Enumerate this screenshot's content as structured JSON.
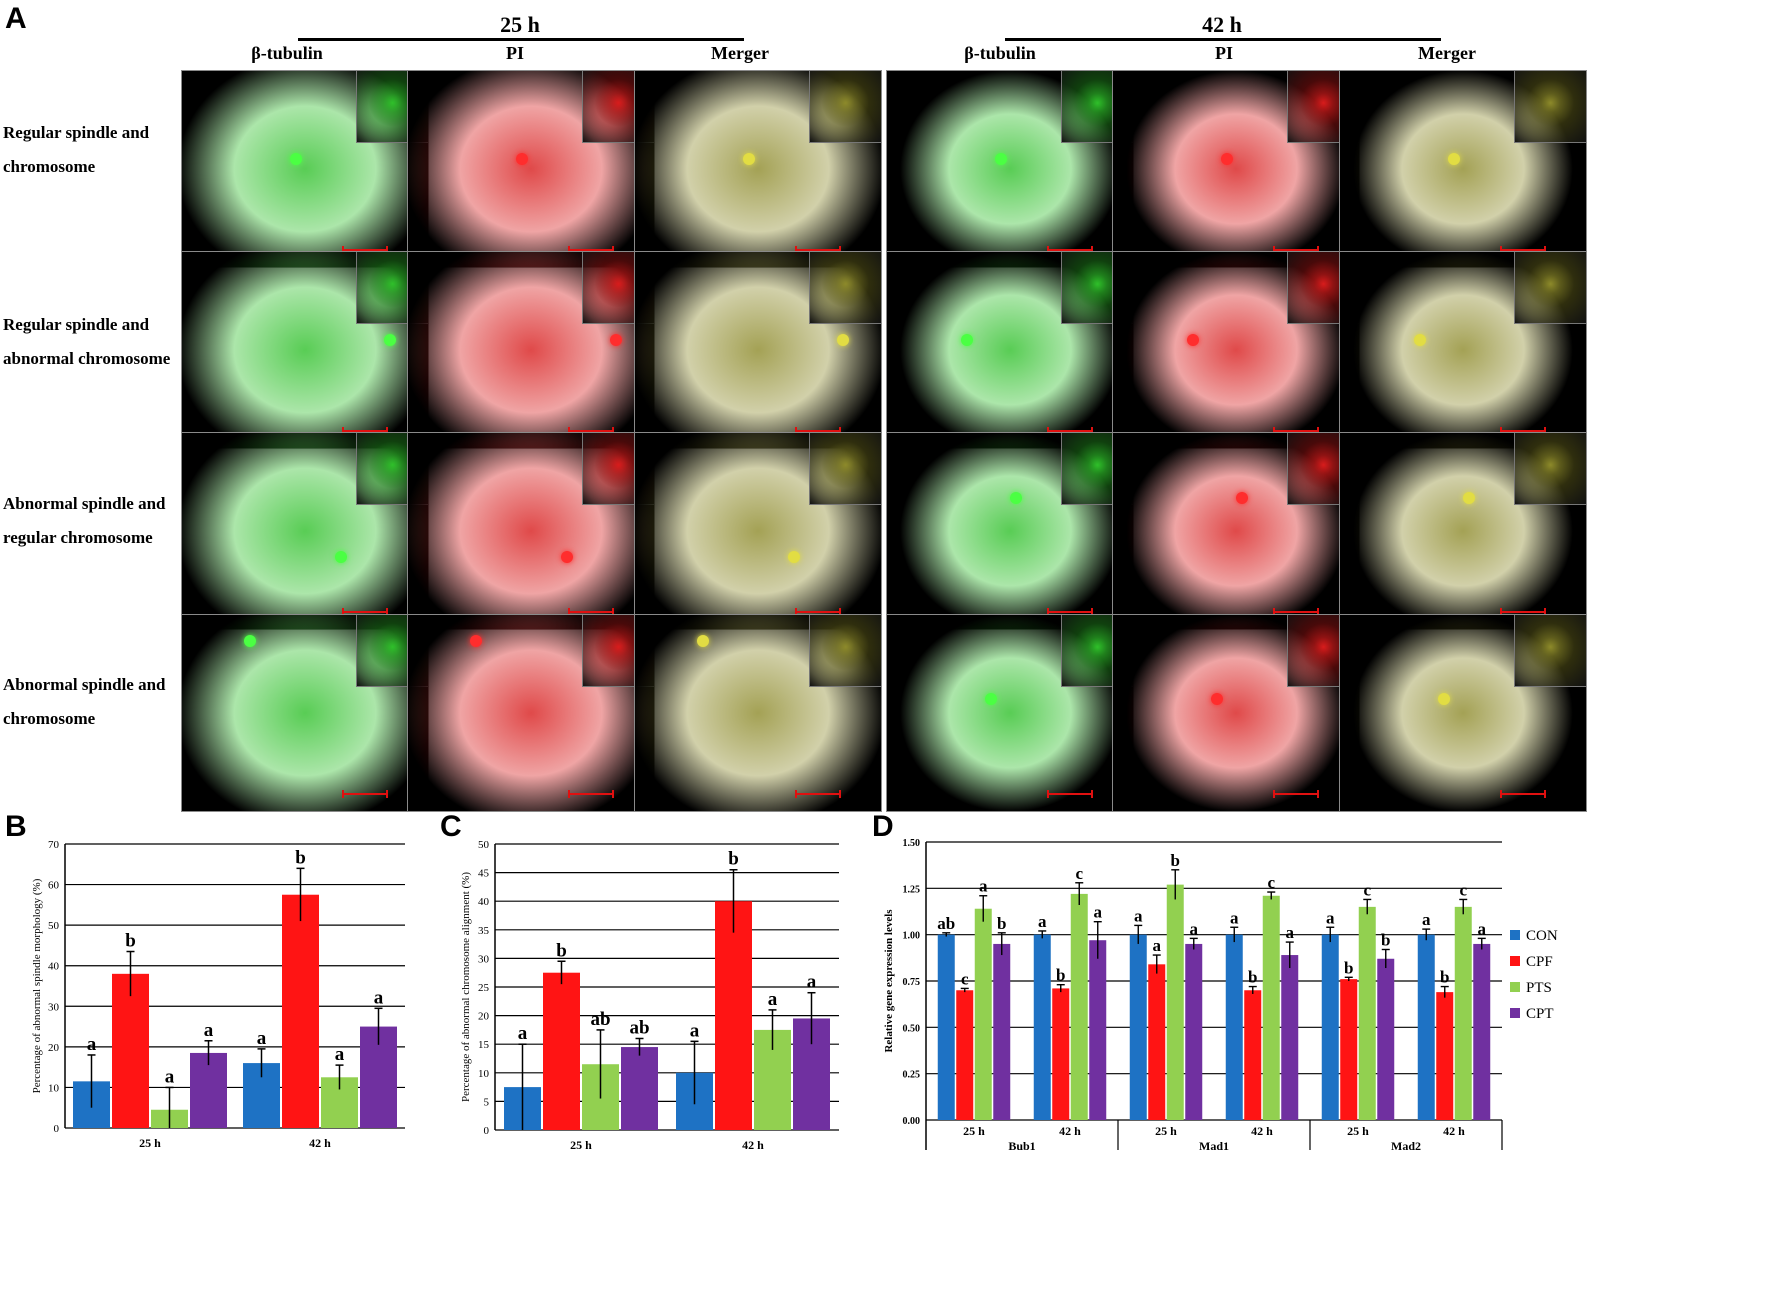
{
  "figure": {
    "panel_labels": {
      "a": "A",
      "b": "B",
      "c": "C",
      "d": "D"
    },
    "panel_a": {
      "time_groups": [
        "25 h",
        "42 h"
      ],
      "columns": [
        "β-tubulin",
        "PI",
        "Merger"
      ],
      "rows": [
        {
          "line1": "Regular spindle and",
          "line2": "chromosome"
        },
        {
          "line1": "Regular spindle and",
          "line2": "abnormal chromosome"
        },
        {
          "line1": "Abnormal spindle and",
          "line2": "regular chromosome"
        },
        {
          "line1": "Abnormal spindle and",
          "line2": "chromosome"
        }
      ],
      "channel_colors": {
        "tubulin": "#2fc02a",
        "pi": "#d81c1c",
        "merger": "#8d8a2a"
      }
    }
  },
  "chart_data": [
    {
      "panel": "B",
      "type": "bar",
      "ylabel": "Percentage of abnormal spindle morphology (%)",
      "ylim": [
        0,
        70
      ],
      "yticks": [
        0,
        10,
        20,
        30,
        40,
        50,
        60,
        70
      ],
      "grid": true,
      "categories": [
        "25 h",
        "42 h"
      ],
      "series": [
        {
          "color": "#1e72c4",
          "values": [
            11.5,
            16
          ],
          "errors": [
            6.5,
            3.5
          ],
          "letters": [
            "a",
            "a"
          ]
        },
        {
          "color": "#ff1414",
          "values": [
            38,
            57.5
          ],
          "errors": [
            5.5,
            6.5
          ],
          "letters": [
            "b",
            "b"
          ]
        },
        {
          "color": "#92d050",
          "values": [
            4.5,
            12.5
          ],
          "errors": [
            5.5,
            3
          ],
          "letters": [
            "a",
            "a"
          ]
        },
        {
          "color": "#7030a0",
          "values": [
            18.5,
            25
          ],
          "errors": [
            3,
            4.5
          ],
          "letters": [
            "a",
            "a"
          ]
        }
      ]
    },
    {
      "panel": "C",
      "type": "bar",
      "ylabel": "Percentage of abnormal chromosome alignment (%)",
      "ylim": [
        0,
        50
      ],
      "yticks": [
        0,
        5,
        10,
        15,
        20,
        25,
        30,
        35,
        40,
        45,
        50
      ],
      "grid": true,
      "categories": [
        "25 h",
        "42 h"
      ],
      "series": [
        {
          "color": "#1e72c4",
          "values": [
            7.5,
            10
          ],
          "errors": [
            7.5,
            5.5
          ],
          "letters": [
            "a",
            "a"
          ]
        },
        {
          "color": "#ff1414",
          "values": [
            27.5,
            40
          ],
          "errors": [
            2,
            5.5
          ],
          "letters": [
            "b",
            "b"
          ]
        },
        {
          "color": "#92d050",
          "values": [
            11.5,
            17.5
          ],
          "errors": [
            6,
            3.5
          ],
          "letters": [
            "ab",
            "a"
          ]
        },
        {
          "color": "#7030a0",
          "values": [
            14.5,
            19.5
          ],
          "errors": [
            1.5,
            4.5
          ],
          "letters": [
            "ab",
            "a"
          ]
        }
      ]
    },
    {
      "panel": "D",
      "type": "bar",
      "ylabel": "Relative gene expression levels",
      "ylim": [
        0,
        1.5
      ],
      "yticks": [
        "0.00",
        "0.25",
        "0.50",
        "0.75",
        "1.00",
        "1.25",
        "1.50"
      ],
      "grid": true,
      "legend_position": "right",
      "genes": [
        "Bub1",
        "Mad1",
        "Mad2"
      ],
      "categories": [
        "25 h",
        "42 h",
        "25 h",
        "42 h",
        "25 h",
        "42 h"
      ],
      "series": [
        {
          "name": "CON",
          "color": "#1e72c4",
          "values": [
            1.0,
            1.0,
            1.0,
            1.0,
            1.0,
            1.0
          ],
          "errors": [
            0.01,
            0.02,
            0.05,
            0.04,
            0.04,
            0.03
          ],
          "letters": [
            "ab",
            "a",
            "a",
            "a",
            "a",
            "a"
          ]
        },
        {
          "name": "CPF",
          "color": "#ff1414",
          "values": [
            0.7,
            0.71,
            0.84,
            0.7,
            0.76,
            0.69
          ],
          "errors": [
            0.01,
            0.02,
            0.05,
            0.02,
            0.01,
            0.03
          ],
          "letters": [
            "c",
            "b",
            "a",
            "b",
            "b",
            "b"
          ]
        },
        {
          "name": "PTS",
          "color": "#92d050",
          "values": [
            1.14,
            1.22,
            1.27,
            1.21,
            1.15,
            1.15
          ],
          "errors": [
            0.07,
            0.06,
            0.08,
            0.02,
            0.04,
            0.04
          ],
          "letters": [
            "a",
            "c",
            "b",
            "c",
            "c",
            "c"
          ]
        },
        {
          "name": "CPT",
          "color": "#7030a0",
          "values": [
            0.95,
            0.97,
            0.95,
            0.89,
            0.87,
            0.95
          ],
          "errors": [
            0.06,
            0.1,
            0.03,
            0.07,
            0.05,
            0.03
          ],
          "letters": [
            "b",
            "a",
            "a",
            "a",
            "b",
            "a"
          ]
        }
      ]
    }
  ]
}
